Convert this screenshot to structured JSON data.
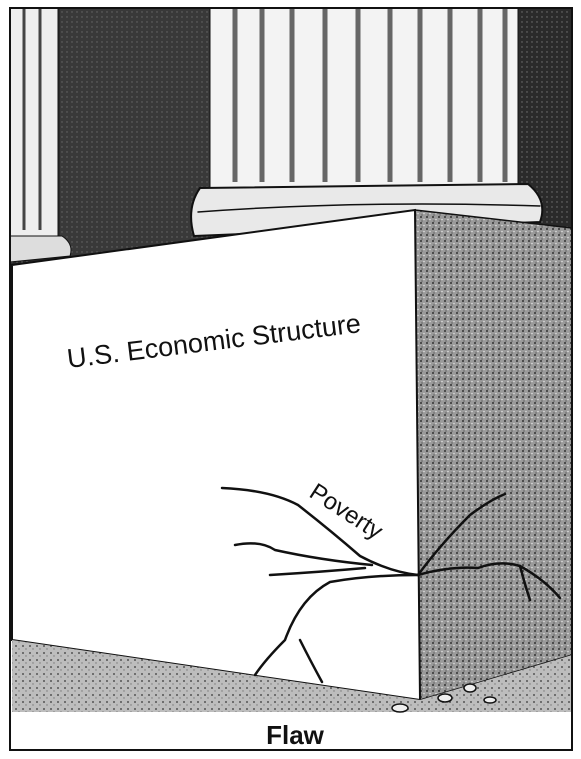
{
  "panel": {
    "label": "U.S. Economic Structure",
    "crack_label": "Poverty",
    "caption": "Flaw"
  }
}
